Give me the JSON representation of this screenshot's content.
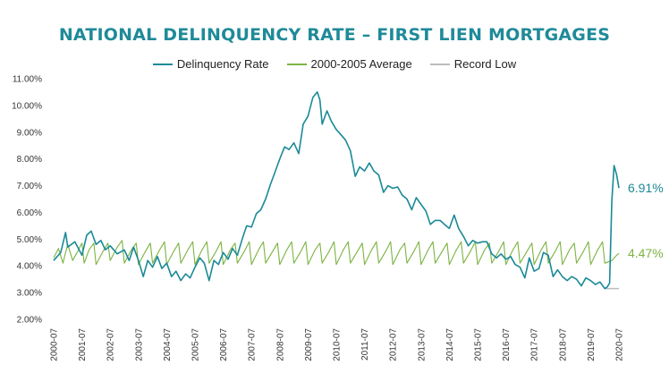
{
  "chart_data": {
    "type": "line",
    "title": "NATIONAL DELINQUENCY RATE – FIRST LIEN MORTGAGES",
    "xlabel": "",
    "ylabel": "",
    "ylim": [
      2.0,
      11.0
    ],
    "y_ticks": [
      "2.00%",
      "3.00%",
      "4.00%",
      "5.00%",
      "6.00%",
      "7.00%",
      "8.00%",
      "9.00%",
      "10.00%",
      "11.00%"
    ],
    "x_ticks": [
      "2000-07",
      "2001-07",
      "2002-07",
      "2003-07",
      "2004-07",
      "2005-07",
      "2006-07",
      "2007-07",
      "2008-07",
      "2009-07",
      "2010-07",
      "2011-07",
      "2012-07",
      "2013-07",
      "2014-07",
      "2015-07",
      "2016-07",
      "2017-07",
      "2018-07",
      "2019-07",
      "2020-07"
    ],
    "x_start": 2000.5,
    "x_end": 2020.5,
    "series": [
      {
        "name": "Delinquency Rate",
        "color": "#1a8a96",
        "points": [
          [
            2000.5,
            4.2
          ],
          [
            2000.75,
            4.5
          ],
          [
            2000.92,
            5.25
          ],
          [
            2001.0,
            4.7
          ],
          [
            2001.25,
            4.9
          ],
          [
            2001.5,
            4.4
          ],
          [
            2001.67,
            5.15
          ],
          [
            2001.83,
            5.3
          ],
          [
            2002.0,
            4.8
          ],
          [
            2002.17,
            4.95
          ],
          [
            2002.33,
            4.6
          ],
          [
            2002.5,
            4.75
          ],
          [
            2002.75,
            4.45
          ],
          [
            2003.0,
            4.6
          ],
          [
            2003.17,
            4.2
          ],
          [
            2003.33,
            4.7
          ],
          [
            2003.5,
            4.2
          ],
          [
            2003.67,
            3.6
          ],
          [
            2003.83,
            4.2
          ],
          [
            2004.0,
            3.95
          ],
          [
            2004.17,
            4.35
          ],
          [
            2004.33,
            3.9
          ],
          [
            2004.5,
            4.1
          ],
          [
            2004.67,
            3.6
          ],
          [
            2004.83,
            3.8
          ],
          [
            2005.0,
            3.45
          ],
          [
            2005.17,
            3.7
          ],
          [
            2005.33,
            3.55
          ],
          [
            2005.5,
            3.95
          ],
          [
            2005.67,
            4.3
          ],
          [
            2005.83,
            4.1
          ],
          [
            2006.0,
            3.45
          ],
          [
            2006.17,
            4.2
          ],
          [
            2006.33,
            4.05
          ],
          [
            2006.5,
            4.5
          ],
          [
            2006.67,
            4.25
          ],
          [
            2006.83,
            4.65
          ],
          [
            2007.0,
            4.4
          ],
          [
            2007.17,
            5.0
          ],
          [
            2007.33,
            5.5
          ],
          [
            2007.5,
            5.45
          ],
          [
            2007.67,
            5.95
          ],
          [
            2007.83,
            6.1
          ],
          [
            2008.0,
            6.5
          ],
          [
            2008.17,
            7.05
          ],
          [
            2008.33,
            7.5
          ],
          [
            2008.5,
            8.0
          ],
          [
            2008.67,
            8.45
          ],
          [
            2008.83,
            8.35
          ],
          [
            2009.0,
            8.6
          ],
          [
            2009.17,
            8.2
          ],
          [
            2009.33,
            9.3
          ],
          [
            2009.5,
            9.6
          ],
          [
            2009.67,
            10.3
          ],
          [
            2009.83,
            10.5
          ],
          [
            2009.92,
            10.2
          ],
          [
            2010.0,
            9.3
          ],
          [
            2010.17,
            9.8
          ],
          [
            2010.33,
            9.4
          ],
          [
            2010.5,
            9.1
          ],
          [
            2010.67,
            8.9
          ],
          [
            2010.83,
            8.7
          ],
          [
            2011.0,
            8.3
          ],
          [
            2011.17,
            7.35
          ],
          [
            2011.33,
            7.7
          ],
          [
            2011.5,
            7.55
          ],
          [
            2011.67,
            7.85
          ],
          [
            2011.83,
            7.55
          ],
          [
            2012.0,
            7.4
          ],
          [
            2012.17,
            6.75
          ],
          [
            2012.33,
            7.0
          ],
          [
            2012.5,
            6.9
          ],
          [
            2012.67,
            6.95
          ],
          [
            2012.83,
            6.65
          ],
          [
            2013.0,
            6.5
          ],
          [
            2013.17,
            6.1
          ],
          [
            2013.33,
            6.55
          ],
          [
            2013.5,
            6.3
          ],
          [
            2013.67,
            6.05
          ],
          [
            2013.83,
            5.55
          ],
          [
            2014.0,
            5.7
          ],
          [
            2014.17,
            5.7
          ],
          [
            2014.33,
            5.55
          ],
          [
            2014.5,
            5.4
          ],
          [
            2014.67,
            5.9
          ],
          [
            2014.83,
            5.4
          ],
          [
            2015.0,
            5.1
          ],
          [
            2015.17,
            4.75
          ],
          [
            2015.33,
            4.95
          ],
          [
            2015.5,
            4.85
          ],
          [
            2015.67,
            4.9
          ],
          [
            2015.83,
            4.9
          ],
          [
            2016.0,
            4.45
          ],
          [
            2016.17,
            4.3
          ],
          [
            2016.33,
            4.45
          ],
          [
            2016.5,
            4.25
          ],
          [
            2016.67,
            4.35
          ],
          [
            2016.83,
            4.05
          ],
          [
            2017.0,
            3.95
          ],
          [
            2017.17,
            3.55
          ],
          [
            2017.33,
            4.3
          ],
          [
            2017.5,
            3.8
          ],
          [
            2017.67,
            3.9
          ],
          [
            2017.83,
            4.5
          ],
          [
            2018.0,
            4.4
          ],
          [
            2018.17,
            3.6
          ],
          [
            2018.33,
            3.85
          ],
          [
            2018.5,
            3.6
          ],
          [
            2018.67,
            3.45
          ],
          [
            2018.83,
            3.6
          ],
          [
            2019.0,
            3.5
          ],
          [
            2019.17,
            3.25
          ],
          [
            2019.33,
            3.55
          ],
          [
            2019.5,
            3.45
          ],
          [
            2019.67,
            3.3
          ],
          [
            2019.83,
            3.4
          ],
          [
            2020.0,
            3.15
          ],
          [
            2020.08,
            3.2
          ],
          [
            2020.17,
            3.35
          ],
          [
            2020.25,
            6.45
          ],
          [
            2020.33,
            7.75
          ],
          [
            2020.42,
            7.4
          ],
          [
            2020.5,
            6.91
          ]
        ],
        "end_label": "6.91%"
      },
      {
        "name": "2000-2005 Average",
        "color": "#7cb342",
        "points": [
          [
            2000.5,
            4.3
          ],
          [
            2000.67,
            4.65
          ],
          [
            2000.83,
            4.1
          ],
          [
            2000.92,
            4.5
          ],
          [
            2001.0,
            4.8
          ],
          [
            2001.17,
            4.2
          ],
          [
            2001.33,
            4.5
          ],
          [
            2001.5,
            4.85
          ],
          [
            2001.58,
            4.1
          ],
          [
            2001.75,
            4.6
          ],
          [
            2001.92,
            4.85
          ],
          [
            2002.0,
            4.05
          ],
          [
            2002.25,
            4.55
          ],
          [
            2002.42,
            4.85
          ],
          [
            2002.5,
            4.2
          ],
          [
            2002.75,
            4.7
          ],
          [
            2002.92,
            4.95
          ],
          [
            2003.0,
            4.1
          ],
          [
            2003.25,
            4.6
          ],
          [
            2003.42,
            4.85
          ],
          [
            2003.5,
            4.05
          ],
          [
            2003.75,
            4.55
          ],
          [
            2003.92,
            4.85
          ],
          [
            2004.0,
            4.1
          ],
          [
            2004.25,
            4.6
          ],
          [
            2004.42,
            4.9
          ],
          [
            2004.5,
            4.05
          ],
          [
            2004.75,
            4.55
          ],
          [
            2004.92,
            4.85
          ],
          [
            2005.0,
            4.1
          ],
          [
            2005.25,
            4.6
          ],
          [
            2005.42,
            4.9
          ],
          [
            2005.5,
            4.05
          ],
          [
            2005.75,
            4.6
          ],
          [
            2005.92,
            4.9
          ],
          [
            2006.0,
            4.1
          ],
          [
            2006.25,
            4.55
          ],
          [
            2006.42,
            4.9
          ],
          [
            2006.5,
            4.05
          ],
          [
            2006.75,
            4.6
          ],
          [
            2006.92,
            4.85
          ],
          [
            2007.0,
            4.1
          ],
          [
            2007.25,
            4.55
          ],
          [
            2007.42,
            4.9
          ],
          [
            2007.5,
            4.05
          ],
          [
            2007.75,
            4.6
          ],
          [
            2007.92,
            4.9
          ],
          [
            2008.0,
            4.1
          ],
          [
            2008.25,
            4.55
          ],
          [
            2008.42,
            4.85
          ],
          [
            2008.5,
            4.05
          ],
          [
            2008.75,
            4.6
          ],
          [
            2008.92,
            4.9
          ],
          [
            2009.0,
            4.1
          ],
          [
            2009.25,
            4.55
          ],
          [
            2009.42,
            4.9
          ],
          [
            2009.5,
            4.05
          ],
          [
            2009.75,
            4.6
          ],
          [
            2009.92,
            4.85
          ],
          [
            2010.0,
            4.1
          ],
          [
            2010.25,
            4.55
          ],
          [
            2010.42,
            4.9
          ],
          [
            2010.5,
            4.05
          ],
          [
            2010.75,
            4.6
          ],
          [
            2010.92,
            4.9
          ],
          [
            2011.0,
            4.1
          ],
          [
            2011.25,
            4.55
          ],
          [
            2011.42,
            4.85
          ],
          [
            2011.5,
            4.05
          ],
          [
            2011.75,
            4.6
          ],
          [
            2011.92,
            4.9
          ],
          [
            2012.0,
            4.1
          ],
          [
            2012.25,
            4.55
          ],
          [
            2012.42,
            4.9
          ],
          [
            2012.5,
            4.05
          ],
          [
            2012.75,
            4.6
          ],
          [
            2012.92,
            4.85
          ],
          [
            2013.0,
            4.1
          ],
          [
            2013.25,
            4.55
          ],
          [
            2013.42,
            4.9
          ],
          [
            2013.5,
            4.05
          ],
          [
            2013.75,
            4.6
          ],
          [
            2013.92,
            4.9
          ],
          [
            2014.0,
            4.1
          ],
          [
            2014.25,
            4.55
          ],
          [
            2014.42,
            4.85
          ],
          [
            2014.5,
            4.05
          ],
          [
            2014.75,
            4.6
          ],
          [
            2014.92,
            4.9
          ],
          [
            2015.0,
            4.1
          ],
          [
            2015.25,
            4.55
          ],
          [
            2015.42,
            4.9
          ],
          [
            2015.5,
            4.05
          ],
          [
            2015.75,
            4.6
          ],
          [
            2015.92,
            4.85
          ],
          [
            2016.0,
            4.1
          ],
          [
            2016.25,
            4.55
          ],
          [
            2016.42,
            4.9
          ],
          [
            2016.5,
            4.05
          ],
          [
            2016.75,
            4.6
          ],
          [
            2016.92,
            4.9
          ],
          [
            2017.0,
            4.1
          ],
          [
            2017.25,
            4.55
          ],
          [
            2017.42,
            4.85
          ],
          [
            2017.5,
            4.05
          ],
          [
            2017.75,
            4.6
          ],
          [
            2017.92,
            4.9
          ],
          [
            2018.0,
            4.1
          ],
          [
            2018.25,
            4.55
          ],
          [
            2018.42,
            4.9
          ],
          [
            2018.5,
            4.05
          ],
          [
            2018.75,
            4.6
          ],
          [
            2018.92,
            4.85
          ],
          [
            2019.0,
            4.1
          ],
          [
            2019.25,
            4.55
          ],
          [
            2019.42,
            4.9
          ],
          [
            2019.5,
            4.05
          ],
          [
            2019.75,
            4.6
          ],
          [
            2019.92,
            4.9
          ],
          [
            2020.0,
            4.1
          ],
          [
            2020.25,
            4.2
          ],
          [
            2020.42,
            4.4
          ],
          [
            2020.5,
            4.47
          ]
        ],
        "end_label": "4.47%"
      },
      {
        "name": "Record Low",
        "color": "#bdbdbd",
        "y_value": 3.15,
        "x_from": 2020.0,
        "x_to": 2020.5
      }
    ]
  }
}
